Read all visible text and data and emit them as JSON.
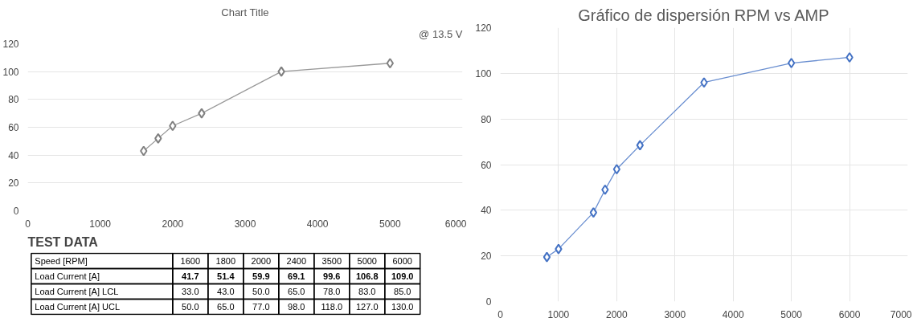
{
  "chart_data": [
    {
      "type": "line",
      "title": "Chart Title",
      "annotations": [
        "@ 13.5 V"
      ],
      "x": [
        1600,
        1800,
        2000,
        2400,
        3500,
        5000
      ],
      "series": [
        {
          "color": "#808080",
          "values": [
            43,
            52,
            61,
            70,
            100,
            106
          ]
        }
      ],
      "xlim": [
        0,
        6000
      ],
      "xticks": [
        0,
        1000,
        2000,
        3000,
        4000,
        5000,
        6000
      ],
      "ylim": [
        0,
        120
      ],
      "yticks": [
        0,
        20,
        40,
        60,
        80,
        100,
        120
      ],
      "grid": "y",
      "marker": "diamond",
      "line_style": "solid"
    },
    {
      "type": "other",
      "title": "TEST DATA",
      "xlabel": "Speed [RPM]",
      "categories": [
        "1600",
        "1800",
        "2000",
        "2400",
        "3500",
        "5000",
        "6000"
      ],
      "series": [
        {
          "name": "Load Current [A]",
          "values": [
            41.7,
            51.4,
            59.9,
            69.1,
            99.6,
            106.8,
            109
          ],
          "value_labels": [
            "41.7",
            "51.4",
            "59.9",
            "69.1",
            "99.6",
            "106.8",
            "109.0"
          ]
        },
        {
          "name": "Load Current [A] LCL",
          "values": [
            33,
            43,
            50,
            65,
            78,
            83,
            85
          ],
          "value_labels": [
            "33.0",
            "43.0",
            "50.0",
            "65.0",
            "78.0",
            "83.0",
            "85.0"
          ]
        },
        {
          "name": "Load Current [A] UCL",
          "values": [
            50,
            65,
            77,
            98,
            118,
            127,
            130
          ],
          "value_labels": [
            "50.0",
            "65.0",
            "77.0",
            "98.0",
            "118.0",
            "127.0",
            "130.0"
          ]
        }
      ]
    },
    {
      "type": "line",
      "title": "Gráfico de dispersión RPM vs AMP",
      "x": [
        800,
        1000,
        1600,
        1800,
        2000,
        2400,
        3500,
        5000,
        6000
      ],
      "series": [
        {
          "color": "#4472c4",
          "values": [
            19.5,
            23,
            39,
            49,
            58,
            68.5,
            96,
            104.5,
            107
          ]
        }
      ],
      "xlim": [
        0,
        7000
      ],
      "xticks": [
        0,
        1000,
        2000,
        3000,
        4000,
        5000,
        6000,
        7000
      ],
      "ylim": [
        0,
        120
      ],
      "yticks": [
        0,
        20,
        40,
        60,
        80,
        100,
        120
      ],
      "grid": true,
      "marker": "diamond",
      "line_style": "solid"
    }
  ]
}
